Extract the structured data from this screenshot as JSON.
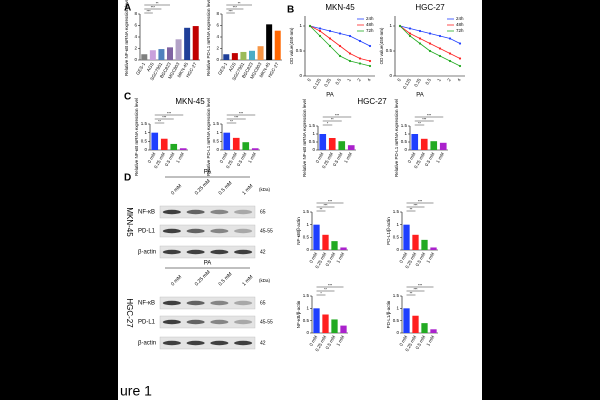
{
  "panel_labels": [
    "A",
    "B",
    "C",
    "D"
  ],
  "caption": "ure 1",
  "section_titles": [
    "MKN-45",
    "HGC-27"
  ],
  "chart_data": [
    {
      "type": "bar",
      "ylabel": "Relative NF-κB mRNA expression level",
      "categories": [
        "GES-1",
        "AGS",
        "SGC7901",
        "BGC823",
        "MGC803",
        "MKN-45",
        "HGC-27"
      ],
      "values": [
        1,
        1.7,
        1.9,
        2.2,
        3.6,
        5.6,
        5.9
      ],
      "colors": [
        "#7f7f7f",
        "#c9a0dc",
        "#4f81bd",
        "#8064a2",
        "#b3a2c7",
        "#1f3f99",
        "#c00000"
      ],
      "ylim": [
        0,
        8
      ],
      "yticks": [
        0,
        2,
        4,
        6,
        8
      ],
      "sig": [
        "***",
        "***",
        "**"
      ]
    },
    {
      "type": "bar",
      "ylabel": "Relative PD-L1 mRNA expression level",
      "categories": [
        "GES-1",
        "AGS",
        "SGC7901",
        "BGC823",
        "MGC803",
        "MKN-45",
        "HGC-27"
      ],
      "values": [
        1,
        1.2,
        1.4,
        1.6,
        2.4,
        6.2,
        5.1
      ],
      "colors": [
        "#1f3f99",
        "#c00000",
        "#9bbb59",
        "#4bacc6",
        "#f79646",
        "#000000",
        "#ff6600"
      ],
      "ylim": [
        0,
        8
      ],
      "yticks": [
        0,
        2,
        4,
        6,
        8
      ],
      "sig": [
        "***",
        "***",
        "**"
      ]
    },
    {
      "type": "line",
      "title": "MKN-45",
      "ylabel": "OD value(450 nm)",
      "xlabel": "PA",
      "legend": "upper right",
      "categories": [
        "0",
        "0.125",
        "0.25",
        "0.5",
        "1",
        "2",
        "4"
      ],
      "series": [
        {
          "name": "24h",
          "color": "#1f3fff",
          "values": [
            1.0,
            0.95,
            0.9,
            0.85,
            0.8,
            0.7,
            0.6
          ]
        },
        {
          "name": "48h",
          "color": "#ff1f1f",
          "values": [
            1.0,
            0.9,
            0.75,
            0.6,
            0.45,
            0.35,
            0.3
          ]
        },
        {
          "name": "72h",
          "color": "#22aa22",
          "values": [
            1.0,
            0.8,
            0.6,
            0.4,
            0.3,
            0.25,
            0.2
          ]
        }
      ],
      "ylim": [
        0,
        1.2
      ],
      "yticks": [
        0,
        0.5,
        1
      ]
    },
    {
      "type": "line",
      "title": "HGC-27",
      "ylabel": "OD value(450 nm)",
      "xlabel": "PA",
      "legend": "upper right",
      "categories": [
        "0",
        "0.125",
        "0.25",
        "0.5",
        "1",
        "2",
        "4"
      ],
      "series": [
        {
          "name": "24h",
          "color": "#1f3fff",
          "values": [
            1.0,
            0.95,
            0.9,
            0.85,
            0.8,
            0.75,
            0.65
          ]
        },
        {
          "name": "48h",
          "color": "#ff1f1f",
          "values": [
            1.0,
            0.85,
            0.75,
            0.65,
            0.55,
            0.45,
            0.35
          ]
        },
        {
          "name": "72h",
          "color": "#22aa22",
          "values": [
            1.0,
            0.8,
            0.65,
            0.5,
            0.4,
            0.3,
            0.2
          ]
        }
      ],
      "ylim": [
        0,
        1.2
      ],
      "yticks": [
        0,
        0.5,
        1
      ]
    },
    {
      "type": "bar",
      "ylabel": "Relative NF-κB mRNA expression level",
      "categories": [
        "0 mM",
        "0.25 mM",
        "0.5 mM",
        "1 mM"
      ],
      "values": [
        1,
        0.65,
        0.35,
        0.1
      ],
      "colors": [
        "#1f3fff",
        "#ff1f1f",
        "#22aa22",
        "#aa22cc"
      ],
      "ylim": [
        0,
        1.5
      ],
      "yticks": [
        0,
        0.5,
        1,
        1.5
      ],
      "sig": [
        "**",
        "***",
        "***"
      ]
    },
    {
      "type": "bar",
      "ylabel": "Relative PD-L1 mRNA expression level",
      "categories": [
        "0 mM",
        "0.25 mM",
        "0.5 mM",
        "1 mM"
      ],
      "values": [
        1,
        0.7,
        0.45,
        0.1
      ],
      "colors": [
        "#1f3fff",
        "#ff1f1f",
        "#22aa22",
        "#aa22cc"
      ],
      "ylim": [
        0,
        1.5
      ],
      "yticks": [
        0,
        0.5,
        1,
        1.5
      ],
      "sig": [
        "**",
        "***",
        "***"
      ]
    },
    {
      "type": "bar",
      "ylabel": "Relative NF-κB mRNA expression level",
      "categories": [
        "0 mM",
        "0.25 mM",
        "0.5 mM",
        "1 mM"
      ],
      "values": [
        1,
        0.75,
        0.55,
        0.3
      ],
      "colors": [
        "#1f3fff",
        "#ff1f1f",
        "#22aa22",
        "#aa22cc"
      ],
      "ylim": [
        0,
        1.5
      ],
      "yticks": [
        0,
        0.5,
        1,
        1.5
      ],
      "sig": [
        "*",
        "**",
        "***"
      ]
    },
    {
      "type": "bar",
      "ylabel": "Relative PD-L1 mRNA expression level",
      "categories": [
        "0 mM",
        "0.25 mM",
        "0.5 mM",
        "1 mM"
      ],
      "values": [
        1,
        0.7,
        0.55,
        0.45
      ],
      "colors": [
        "#1f3fff",
        "#ff1f1f",
        "#22aa22",
        "#aa22cc"
      ],
      "ylim": [
        0,
        1.5
      ],
      "yticks": [
        0,
        0.5,
        1,
        1.5
      ],
      "sig": [
        "**",
        "***",
        "***"
      ]
    },
    {
      "type": "bar",
      "ylabel": "NF-κB/β-actin",
      "categories": [
        "0 mM",
        "0.25 mM",
        "0.5 mM",
        "1 mM"
      ],
      "values": [
        1,
        0.6,
        0.35,
        0.1
      ],
      "colors": [
        "#1f3fff",
        "#ff1f1f",
        "#22aa22",
        "#aa22cc"
      ],
      "ylim": [
        0,
        1.5
      ],
      "yticks": [
        0,
        0.5,
        1,
        1.5
      ],
      "sig": [
        "**",
        "***",
        "***"
      ]
    },
    {
      "type": "bar",
      "ylabel": "PD-L1/β-actin",
      "categories": [
        "0 mM",
        "0.25 mM",
        "0.5 mM",
        "1 mM"
      ],
      "values": [
        1,
        0.6,
        0.4,
        0.1
      ],
      "colors": [
        "#1f3fff",
        "#ff1f1f",
        "#22aa22",
        "#aa22cc"
      ],
      "ylim": [
        0,
        1.5
      ],
      "yticks": [
        0,
        0.5,
        1,
        1.5
      ],
      "sig": [
        "**",
        "***",
        "***"
      ]
    },
    {
      "type": "bar",
      "ylabel": "NF-κB/β-actin",
      "categories": [
        "0 mM",
        "0.25 mM",
        "0.5 mM",
        "1 mM"
      ],
      "values": [
        1,
        0.75,
        0.55,
        0.3
      ],
      "colors": [
        "#1f3fff",
        "#ff1f1f",
        "#22aa22",
        "#aa22cc"
      ],
      "ylim": [
        0,
        1.5
      ],
      "yticks": [
        0,
        0.5,
        1,
        1.5
      ],
      "sig": [
        "*",
        "**",
        "***"
      ]
    },
    {
      "type": "bar",
      "ylabel": "PD-L1/β-actin",
      "categories": [
        "0 mM",
        "0.25 mM",
        "0.5 mM",
        "1 mM"
      ],
      "values": [
        1,
        0.7,
        0.4,
        0.15
      ],
      "colors": [
        "#1f3fff",
        "#ff1f1f",
        "#22aa22",
        "#aa22cc"
      ],
      "ylim": [
        0,
        1.5
      ],
      "yticks": [
        0,
        0.5,
        1,
        1.5
      ],
      "sig": [
        "**",
        "***",
        "***"
      ]
    }
  ],
  "blots": [
    {
      "cell_line": "MKN-45",
      "treatment": "PA",
      "unit": "(kDa)",
      "lanes": [
        "0 mM",
        "0.25 mM",
        "0.5 mM",
        "1 mM"
      ],
      "bands": [
        {
          "name": "NF-κB",
          "kda": "65"
        },
        {
          "name": "PD-L1",
          "kda": "45-55"
        },
        {
          "name": "β-actin",
          "kda": "42"
        }
      ]
    },
    {
      "cell_line": "HGC-27",
      "treatment": "PA",
      "unit": "(kDa)",
      "lanes": [
        "0 mM",
        "0.25 mM",
        "0.5 mM",
        "1 mM"
      ],
      "bands": [
        {
          "name": "NF-κB",
          "kda": "65"
        },
        {
          "name": "PD-L1",
          "kda": "45-55"
        },
        {
          "name": "β-actin",
          "kda": "42"
        }
      ]
    }
  ]
}
